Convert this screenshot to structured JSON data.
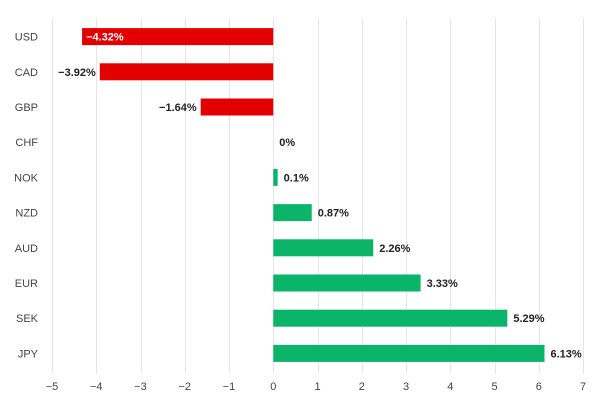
{
  "chart_data": {
    "type": "bar",
    "orientation": "horizontal",
    "categories": [
      "USD",
      "CAD",
      "GBP",
      "CHF",
      "NOK",
      "NZD",
      "AUD",
      "EUR",
      "SEK",
      "JPY"
    ],
    "values": [
      -4.32,
      -3.92,
      -1.64,
      0,
      0.1,
      0.87,
      2.26,
      3.33,
      5.29,
      6.13
    ],
    "data_labels": [
      "−4.32%",
      "−3.92%",
      "−1.64%",
      "0%",
      "0.1%",
      "0.87%",
      "2.26%",
      "3.33%",
      "5.29%",
      "6.13%"
    ],
    "xlim": [
      -5,
      7
    ],
    "ticks": [
      -5,
      -4,
      -3,
      -2,
      -1,
      0,
      1,
      2,
      3,
      4,
      5,
      6,
      7
    ],
    "tick_labels": [
      "−5",
      "−4",
      "−3",
      "−2",
      "−1",
      "0",
      "1",
      "2",
      "3",
      "4",
      "5",
      "6",
      "7"
    ],
    "grid": true,
    "colors": {
      "negative": "#e20000",
      "positive": "#0ab56a",
      "grid": "#e6e6e6",
      "text": "#444444"
    }
  }
}
